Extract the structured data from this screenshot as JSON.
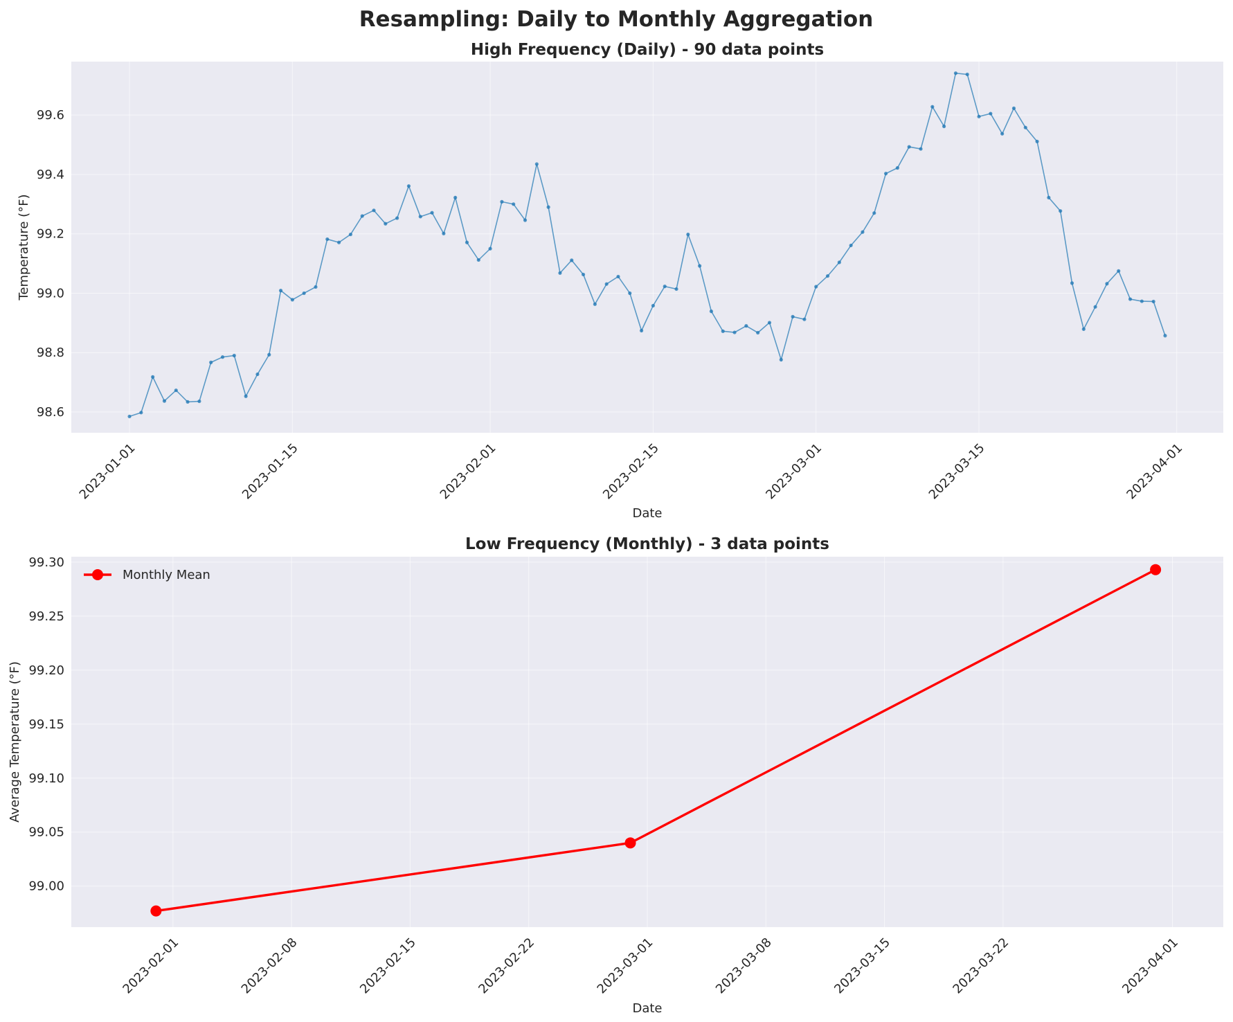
{
  "figure": {
    "title": "Resampling: Daily to Monthly Aggregation"
  },
  "colors": {
    "axes_background": "#eaeaf2",
    "daily_line": "#1f77b4",
    "monthly_line": "#ff0000",
    "text": "#262626"
  },
  "chart_data": [
    {
      "type": "line",
      "title": "High Frequency (Daily) - 90 data points",
      "xlabel": "Date",
      "ylabel": "Temperature (°F)",
      "grid": true,
      "x_start": "2023-01-01",
      "x_end": "2023-03-31",
      "xlim": [
        "2022-12-27",
        "2023-04-05"
      ],
      "ylim": [
        98.53,
        99.78
      ],
      "x_ticks": [
        "2023-01-01",
        "2023-01-15",
        "2023-02-01",
        "2023-02-15",
        "2023-03-01",
        "2023-03-15",
        "2023-04-01"
      ],
      "y_ticks": [
        98.6,
        98.8,
        99.0,
        99.2,
        99.4,
        99.6
      ],
      "y_tick_labels": [
        "98.6",
        "98.8",
        "99.0",
        "99.2",
        "99.4",
        "99.6"
      ],
      "series": [
        {
          "values": [
            98.585,
            98.598,
            98.718,
            98.637,
            98.673,
            98.634,
            98.636,
            98.767,
            98.785,
            98.79,
            98.653,
            98.727,
            98.793,
            99.009,
            98.978,
            99.0,
            99.021,
            99.182,
            99.171,
            99.198,
            99.26,
            99.279,
            99.234,
            99.253,
            99.361,
            99.258,
            99.271,
            99.201,
            99.322,
            99.171,
            99.112,
            99.15,
            99.308,
            99.3,
            99.246,
            99.435,
            99.29,
            99.068,
            99.111,
            99.063,
            98.963,
            99.031,
            99.056,
            99.0,
            98.874,
            98.958,
            99.023,
            99.014,
            99.198,
            99.092,
            98.939,
            98.872,
            98.868,
            98.89,
            98.867,
            98.901,
            98.776,
            98.921,
            98.912,
            99.022,
            99.058,
            99.104,
            99.161,
            99.206,
            99.27,
            99.403,
            99.422,
            99.493,
            99.486,
            99.628,
            99.562,
            99.741,
            99.737,
            99.595,
            99.605,
            99.537,
            99.623,
            99.558,
            99.511,
            99.322,
            99.277,
            99.034,
            98.879,
            98.954,
            99.032,
            99.075,
            98.98,
            98.973,
            98.972,
            98.857
          ]
        }
      ]
    },
    {
      "type": "line",
      "title": "Low Frequency (Monthly) - 3 data points",
      "xlabel": "Date",
      "ylabel": "Average Temperature (°F)",
      "grid": true,
      "legend_position": "top-left",
      "xlim": [
        "2023-01-26",
        "2023-04-04"
      ],
      "ylim": [
        98.962,
        99.305
      ],
      "x_ticks": [
        "2023-02-01",
        "2023-02-08",
        "2023-02-15",
        "2023-02-22",
        "2023-03-01",
        "2023-03-08",
        "2023-03-15",
        "2023-03-22",
        "2023-04-01"
      ],
      "y_ticks": [
        99.0,
        99.05,
        99.1,
        99.15,
        99.2,
        99.25,
        99.3
      ],
      "y_tick_labels": [
        "99.00",
        "99.05",
        "99.10",
        "99.15",
        "99.20",
        "99.25",
        "99.30"
      ],
      "series": [
        {
          "name": "Monthly Mean",
          "x": [
            "2023-01-31",
            "2023-02-28",
            "2023-03-31"
          ],
          "values": [
            98.977,
            99.04,
            99.293
          ]
        }
      ]
    }
  ]
}
